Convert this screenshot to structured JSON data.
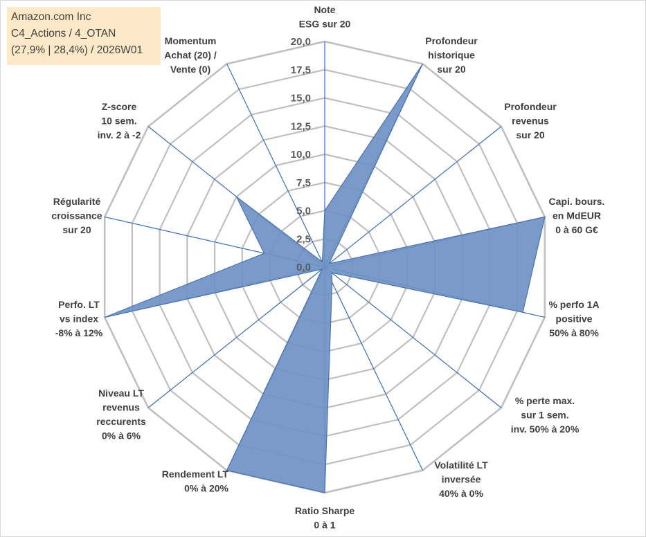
{
  "title_lines": [
    "Amazon.com Inc",
    "C4_Actions / 4_OTAN",
    "(27,9% | 28,4%) / 2026W01"
  ],
  "chart_data": {
    "type": "radar",
    "title": "Amazon.com Inc",
    "rmin": 0,
    "rmax": 20,
    "tick_step": 2.5,
    "tick_labels": [
      "0,0",
      "2,5",
      "5,0",
      "7,5",
      "10,0",
      "12,5",
      "15,0",
      "17,5",
      "20,0"
    ],
    "grid": true,
    "legend": "none",
    "categories": [
      [
        "Note",
        "ESG sur 20"
      ],
      [
        "Profondeur",
        "historique",
        "sur 20"
      ],
      [
        "Profondeur",
        "revenus",
        "sur 20"
      ],
      [
        "Capi. bours.",
        "en MdEUR",
        "0 à 60 G€"
      ],
      [
        "% perfo 1A",
        "positive",
        "50% à 80%"
      ],
      [
        "% perte max.",
        "sur 1 sem.",
        "inv. 50% à 20%"
      ],
      [
        "Volatilité LT",
        "inversée",
        "40% à 0%"
      ],
      [
        "Ratio Sharpe",
        "0 à 1"
      ],
      [
        "Rendement LT",
        "0% à 20%"
      ],
      [
        "Niveau LT",
        "revenus",
        "reccurents",
        "0% à 6%"
      ],
      [
        "Perfo. LT",
        "vs index",
        "-8% à 12%"
      ],
      [
        "Régularité",
        "croissance",
        "sur 20"
      ],
      [
        "Z-score",
        "10 sem.",
        "inv. 2 à -2"
      ],
      [
        "Momentum",
        "Achat (20) /",
        "Vente (0)"
      ]
    ],
    "series": [
      {
        "values": [
          5.0,
          20.0,
          0.5,
          20.0,
          18.0,
          0.8,
          1.5,
          20.0,
          20.0,
          0.3,
          20.0,
          5.5,
          10.0,
          0.5
        ]
      }
    ],
    "colors": {
      "fill": "#6f93c4",
      "line": "#4a72b0",
      "spokes": "#3a6bbd",
      "grid": "#bfbfbf"
    }
  }
}
